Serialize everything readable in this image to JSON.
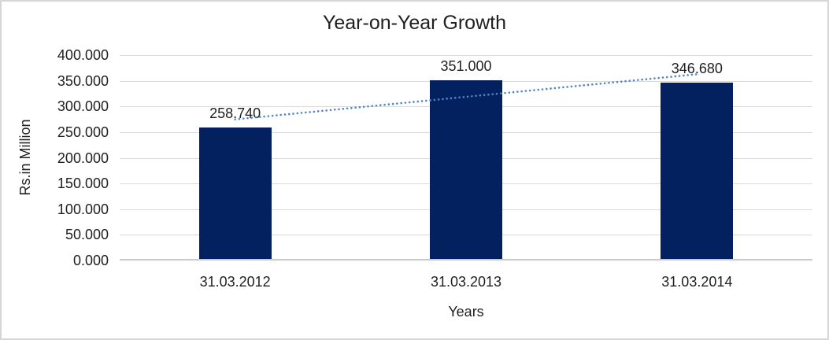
{
  "window": {
    "background": "#FFFFFF",
    "border_color": "#D6D6D6"
  },
  "chart_data": {
    "type": "bar",
    "title": "Year-on-Year Growth",
    "categories": [
      "31.03.2012",
      "31.03.2013",
      "31.03.2014"
    ],
    "values": [
      258.74,
      351.0,
      346.68
    ],
    "data_labels": [
      "258.740",
      "351.000",
      "346.680"
    ],
    "xlabel": "Years",
    "ylabel": "Rs.in Million",
    "ylim": [
      0,
      400
    ],
    "ytick_step": 50,
    "ytick_labels": [
      "400.000",
      "350.000",
      "300.000",
      "250.000",
      "200.000",
      "150.000",
      "100.000",
      "50.000",
      "0.000"
    ],
    "grid": true,
    "legend": false,
    "colors": {
      "bar": "#03215E",
      "trendline": "#4E86C8",
      "gridline": "#D9D9D9",
      "axis_line": "#C9C9C9",
      "text": "#1F1F1F"
    },
    "trendline": {
      "type": "linear",
      "style": "dotted"
    }
  }
}
